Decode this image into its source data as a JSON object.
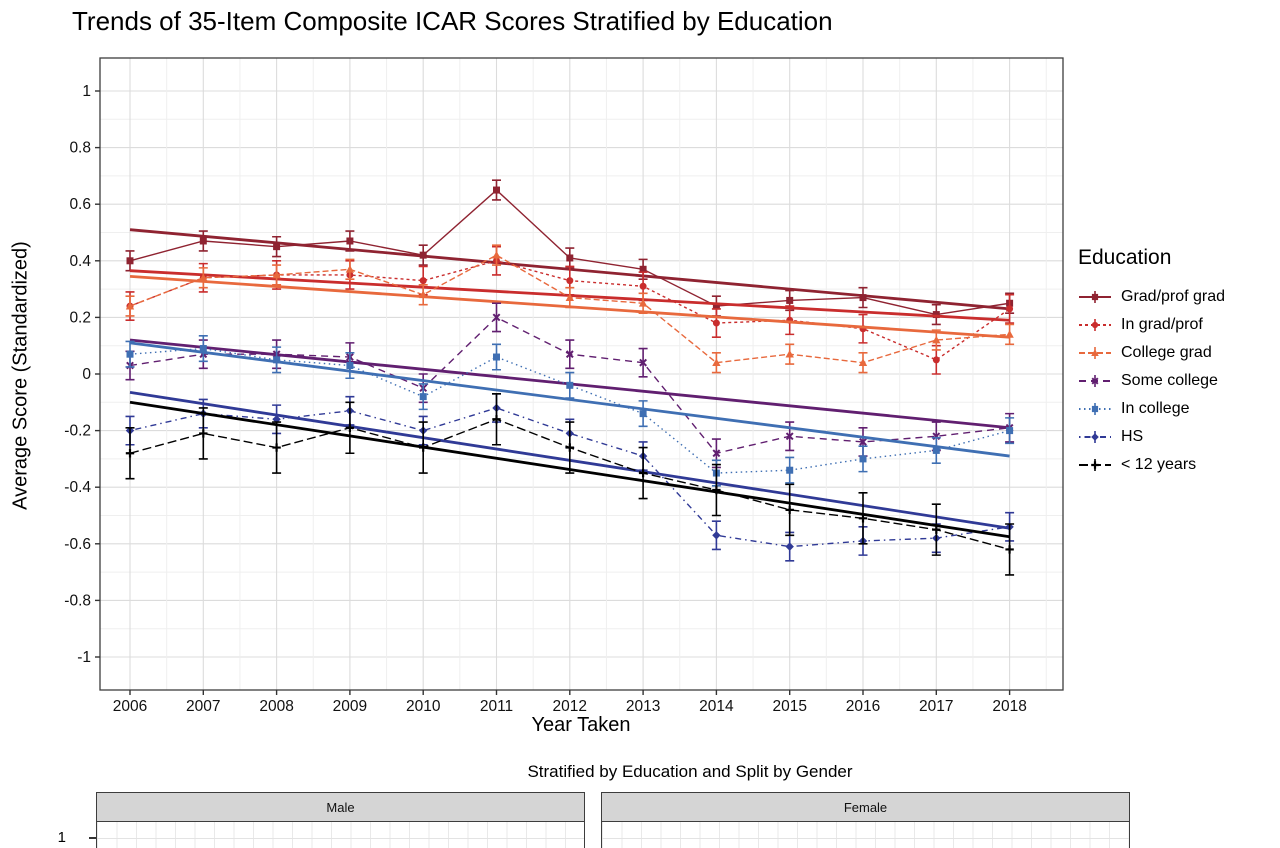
{
  "chart_data": {
    "type": "line",
    "title": "Trends of 35-Item Composite ICAR Scores Stratified by Education",
    "xlabel": "Year Taken",
    "ylabel": "Average Score (Standardized)",
    "legend_title": "Education",
    "legend_position": "right",
    "grid": true,
    "x": [
      2006,
      2007,
      2008,
      2009,
      2010,
      2011,
      2012,
      2013,
      2014,
      2015,
      2016,
      2017,
      2018
    ],
    "ylim": [
      -1.08,
      1.08
    ],
    "yticks": [
      1,
      0.8,
      0.6,
      0.4,
      0.2,
      0,
      -0.2,
      -0.4,
      -0.6,
      -0.8,
      -1
    ],
    "series": [
      {
        "name": "Grad/prof grad",
        "color": "#8f2331",
        "marker": "square",
        "linetype": "solid",
        "values": [
          0.4,
          0.47,
          0.45,
          0.47,
          0.42,
          0.65,
          0.41,
          0.37,
          0.24,
          0.26,
          0.27,
          0.21,
          0.25
        ],
        "error": 0.035,
        "trend": [
          0.51,
          0.23
        ]
      },
      {
        "name": "In grad/prof",
        "color": "#c92d2d",
        "marker": "circle",
        "linetype": "dashed-fine",
        "values": [
          0.24,
          0.34,
          0.35,
          0.35,
          0.33,
          0.4,
          0.33,
          0.31,
          0.18,
          0.19,
          0.16,
          0.05,
          0.23
        ],
        "error": 0.05,
        "trend": [
          0.365,
          0.19
        ]
      },
      {
        "name": "College grad",
        "color": "#e8693d",
        "marker": "triangle",
        "linetype": "dashed",
        "values": [
          0.24,
          0.34,
          0.35,
          0.37,
          0.28,
          0.42,
          0.27,
          0.25,
          0.04,
          0.07,
          0.04,
          0.12,
          0.14
        ],
        "error": 0.035,
        "trend": [
          0.345,
          0.13
        ]
      },
      {
        "name": "Some college",
        "color": "#611f70",
        "marker": "x",
        "linetype": "longdash",
        "values": [
          0.03,
          0.07,
          0.07,
          0.06,
          -0.05,
          0.2,
          0.07,
          0.04,
          -0.28,
          -0.22,
          -0.24,
          -0.22,
          -0.19
        ],
        "error": 0.05,
        "trend": [
          0.12,
          -0.19
        ]
      },
      {
        "name": "In college",
        "color": "#3f6fb3",
        "marker": "square",
        "linetype": "dotted",
        "values": [
          0.07,
          0.09,
          0.05,
          0.03,
          -0.08,
          0.06,
          -0.04,
          -0.14,
          -0.35,
          -0.34,
          -0.3,
          -0.27,
          -0.2
        ],
        "error": 0.045,
        "trend": [
          0.11,
          -0.29
        ]
      },
      {
        "name": "HS",
        "color": "#303a96",
        "marker": "diamond",
        "linetype": "dashdot",
        "values": [
          -0.2,
          -0.14,
          -0.16,
          -0.13,
          -0.2,
          -0.12,
          -0.21,
          -0.29,
          -0.57,
          -0.61,
          -0.59,
          -0.58,
          -0.54
        ],
        "error": 0.05,
        "trend": [
          -0.065,
          -0.545
        ]
      },
      {
        "name": "< 12 years",
        "color": "#000000",
        "marker": "plus",
        "linetype": "longdash2",
        "values": [
          -0.28,
          -0.21,
          -0.26,
          -0.19,
          -0.26,
          -0.16,
          -0.26,
          -0.35,
          -0.41,
          -0.48,
          -0.51,
          -0.55,
          -0.62
        ],
        "error": 0.09,
        "trend": [
          -0.1,
          -0.575
        ]
      }
    ]
  },
  "facet_chart": {
    "title": "Stratified by Education and Split by Gender",
    "facets": [
      "Male",
      "Female"
    ],
    "y_tick_visible": "1"
  }
}
